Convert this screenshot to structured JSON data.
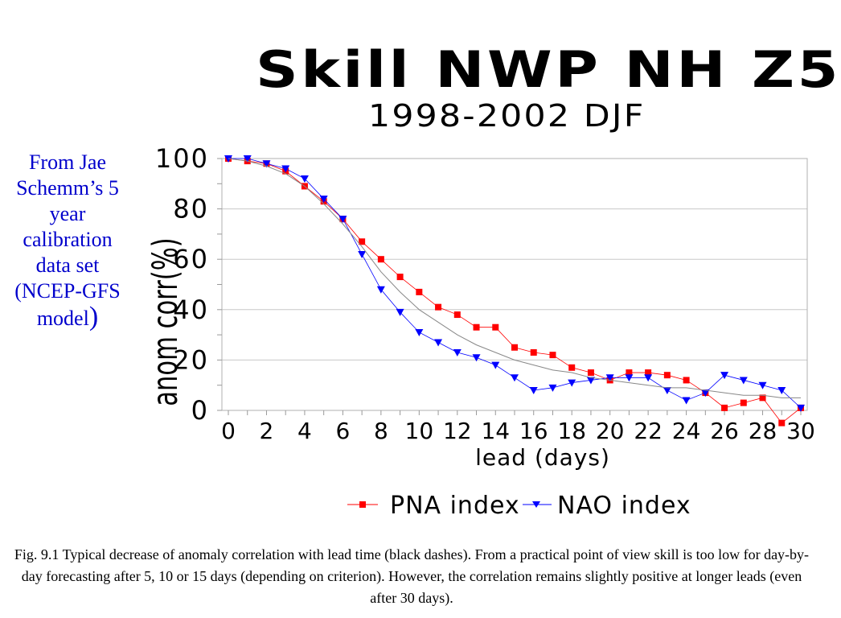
{
  "page": {
    "title": "Skill NWP NH Z5",
    "subtitle": "1998-2002 DJF",
    "side_note": "From Jae Schemm’s 5 year calibration data set (NCEP-GFS model",
    "side_note_paren": ")",
    "caption": "Fig. 9.1 Typical decrease of anomaly correlation with lead time (black dashes). From a practical point of view skill is too low for day-by-day forecasting after 5, 10 or 15 days (depending on criterion). However, the correlation remains slightly positive at longer leads (even after 30 days)."
  },
  "chart_data": {
    "type": "line",
    "title": "",
    "xlabel": "lead (days)",
    "ylabel": "anom corr(%)",
    "xlim": [
      0,
      30
    ],
    "ylim": [
      0,
      100
    ],
    "xticks": [
      0,
      2,
      4,
      6,
      8,
      10,
      12,
      14,
      16,
      18,
      20,
      22,
      24,
      26,
      28,
      30
    ],
    "yticks": [
      0,
      20,
      40,
      60,
      80,
      100
    ],
    "grid": "horizontal",
    "legend_position": "bottom",
    "x": [
      0,
      1,
      2,
      3,
      4,
      5,
      6,
      7,
      8,
      9,
      10,
      11,
      12,
      13,
      14,
      15,
      16,
      17,
      18,
      19,
      20,
      21,
      22,
      23,
      24,
      25,
      26,
      27,
      28,
      29,
      30
    ],
    "series": [
      {
        "name": "PNA index",
        "color": "#ff0000",
        "marker": "square",
        "values": [
          100,
          99,
          98,
          95,
          89,
          83,
          76,
          67,
          60,
          53,
          47,
          41,
          38,
          33,
          33,
          25,
          23,
          22,
          17,
          15,
          12,
          15,
          15,
          14,
          12,
          7,
          1,
          3,
          5,
          -5,
          1
        ]
      },
      {
        "name": "NAO index",
        "color": "#0000ff",
        "marker": "triangle-down",
        "values": [
          100,
          100,
          98,
          96,
          92,
          84,
          76,
          62,
          48,
          39,
          31,
          27,
          23,
          21,
          18,
          13,
          8,
          9,
          11,
          12,
          13,
          13,
          13,
          8,
          4,
          7,
          14,
          12,
          10,
          8,
          1
        ]
      },
      {
        "name": "",
        "color": "#888888",
        "marker": "none",
        "values": [
          100,
          99,
          97,
          94,
          89,
          82,
          74,
          65,
          55,
          47,
          40,
          35,
          30,
          26,
          23,
          20,
          18,
          16,
          15,
          13,
          12,
          11,
          10,
          9,
          9,
          8,
          7,
          6,
          6,
          5,
          5
        ]
      }
    ]
  }
}
